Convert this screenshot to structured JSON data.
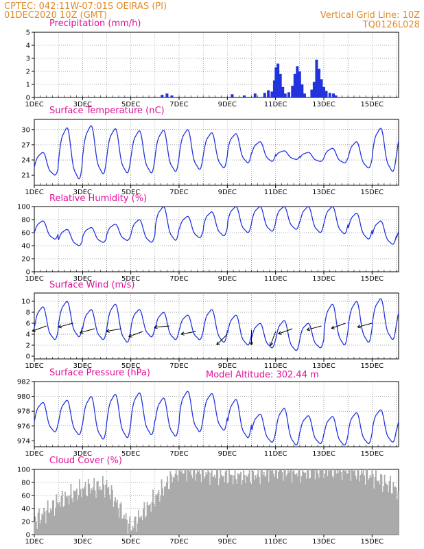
{
  "header": {
    "line1": "CPTEC:   042:11W-07:01S   OEIRAS (PI)",
    "line2": "01DEC2020 10Z (GMT)",
    "right1": "Vertical Grid Line: 10Z",
    "right2": "TQ0126L028"
  },
  "model_altitude": "Model Altitude: 302.44 m",
  "colors": {
    "line": "#2233dd",
    "bar": "#2233dd",
    "cloud": "#aaaaaa",
    "title": "#e0109a",
    "header": "#e08a28",
    "arrow": "#000000"
  },
  "chart_data": [
    {
      "type": "bar",
      "title": "Precipitation (mm/h)",
      "ylim": [
        0,
        5
      ],
      "yticks": [
        "0",
        "1",
        "2",
        "3",
        "4",
        "5"
      ],
      "xticks": [
        "1DEC",
        "3DEC",
        "5DEC",
        "7DEC",
        "9DEC",
        "11DEC",
        "13DEC",
        "15DEC"
      ],
      "bars": [
        {
          "day": 6.3,
          "v": 0.2
        },
        {
          "day": 6.5,
          "v": 0.3
        },
        {
          "day": 6.7,
          "v": 0.15
        },
        {
          "day": 9.2,
          "v": 0.25
        },
        {
          "day": 9.7,
          "v": 0.15
        },
        {
          "day": 10.15,
          "v": 0.3
        },
        {
          "day": 10.55,
          "v": 0.35
        },
        {
          "day": 10.7,
          "v": 0.55
        },
        {
          "day": 10.85,
          "v": 0.45
        },
        {
          "day": 10.95,
          "v": 1.3
        },
        {
          "day": 11.02,
          "v": 2.3
        },
        {
          "day": 11.1,
          "v": 2.6
        },
        {
          "day": 11.2,
          "v": 1.8
        },
        {
          "day": 11.3,
          "v": 0.8
        },
        {
          "day": 11.4,
          "v": 0.3
        },
        {
          "day": 11.55,
          "v": 0.4
        },
        {
          "day": 11.7,
          "v": 0.9
        },
        {
          "day": 11.8,
          "v": 1.8
        },
        {
          "day": 11.9,
          "v": 2.4
        },
        {
          "day": 12.0,
          "v": 2.0
        },
        {
          "day": 12.1,
          "v": 1.0
        },
        {
          "day": 12.2,
          "v": 0.3
        },
        {
          "day": 12.5,
          "v": 0.6
        },
        {
          "day": 12.6,
          "v": 1.2
        },
        {
          "day": 12.7,
          "v": 2.9
        },
        {
          "day": 12.8,
          "v": 2.2
        },
        {
          "day": 12.9,
          "v": 1.4
        },
        {
          "day": 13.0,
          "v": 0.8
        },
        {
          "day": 13.1,
          "v": 0.5
        },
        {
          "day": 13.25,
          "v": 0.35
        },
        {
          "day": 13.4,
          "v": 0.3
        },
        {
          "day": 13.5,
          "v": 0.15
        }
      ]
    },
    {
      "type": "line",
      "title": "Surface Temperature (nC)",
      "ylim": [
        19,
        32
      ],
      "yticks": [
        "21",
        "24",
        "27",
        "30"
      ],
      "ytick_values": [
        21,
        24,
        27,
        30
      ],
      "xticks": [
        "1DEC",
        "3DEC",
        "5DEC",
        "7DEC",
        "9DEC",
        "11DEC",
        "13DEC",
        "15DEC"
      ],
      "daily_max": [
        25.5,
        30.4,
        30.8,
        30.2,
        29.8,
        29.9,
        30.0,
        29.4,
        29.2,
        27.6,
        25.8,
        25.5,
        26.3,
        27.6,
        30.3,
        30.5
      ],
      "daily_min": [
        21.0,
        20.2,
        21.2,
        21.4,
        21.4,
        21.7,
        22.1,
        22.4,
        23.4,
        23.7,
        24.1,
        23.7,
        23.4,
        22.4,
        21.7,
        21.2
      ]
    },
    {
      "type": "line",
      "title": "Relative Humidity (%)",
      "ylim": [
        0,
        100
      ],
      "yticks": [
        "0",
        "20",
        "40",
        "60",
        "80",
        "100"
      ],
      "ytick_values": [
        0,
        20,
        40,
        60,
        80,
        100
      ],
      "xticks": [
        "1DEC",
        "3DEC",
        "5DEC",
        "7DEC",
        "9DEC",
        "11DEC",
        "13DEC",
        "15DEC"
      ],
      "daily_max": [
        78,
        65,
        68,
        73,
        80,
        100,
        85,
        92,
        100,
        100,
        100,
        100,
        100,
        90,
        78,
        70
      ],
      "daily_min": [
        50,
        40,
        45,
        48,
        45,
        48,
        52,
        55,
        60,
        62,
        65,
        60,
        58,
        50,
        42,
        40
      ]
    },
    {
      "type": "line",
      "title": "Surface Wind (m/s)",
      "ylim": [
        -0.5,
        11.5
      ],
      "yticks": [
        "0",
        "2",
        "4",
        "6",
        "8",
        "10"
      ],
      "ytick_values": [
        0,
        2,
        4,
        6,
        8,
        10
      ],
      "xticks": [
        "1DEC",
        "3DEC",
        "5DEC",
        "7DEC",
        "9DEC",
        "11DEC",
        "13DEC",
        "15DEC"
      ],
      "daily_max": [
        9.0,
        10.0,
        8.5,
        9.5,
        8.5,
        8.0,
        7.5,
        8.5,
        7.5,
        6.0,
        6.5,
        6.0,
        9.5,
        10.0,
        10.5,
        10.0
      ],
      "daily_min": [
        3.0,
        3.5,
        3.0,
        2.5,
        3.5,
        3.0,
        3.0,
        2.5,
        2.0,
        1.5,
        1.0,
        1.5,
        2.0,
        2.5,
        3.0,
        3.0
      ],
      "arrows": [
        {
          "day": 1.5,
          "v": 5.5,
          "dir": 250
        },
        {
          "day": 2.6,
          "v": 6.0,
          "dir": 255
        },
        {
          "day": 3.5,
          "v": 5.0,
          "dir": 255
        },
        {
          "day": 4.6,
          "v": 5.0,
          "dir": 260
        },
        {
          "day": 5.5,
          "v": 4.5,
          "dir": 250
        },
        {
          "day": 6.6,
          "v": 5.5,
          "dir": 265
        },
        {
          "day": 7.7,
          "v": 4.5,
          "dir": 260
        },
        {
          "day": 9.0,
          "v": 4.0,
          "dir": 225
        },
        {
          "day": 10.0,
          "v": 4.8,
          "dir": 180
        },
        {
          "day": 11.0,
          "v": 4.5,
          "dir": 200
        },
        {
          "day": 11.7,
          "v": 5.0,
          "dir": 250
        },
        {
          "day": 12.9,
          "v": 5.5,
          "dir": 255
        },
        {
          "day": 13.9,
          "v": 6.0,
          "dir": 250
        },
        {
          "day": 15.0,
          "v": 6.0,
          "dir": 255
        }
      ]
    },
    {
      "type": "line",
      "title": "Surface Pressure (hPa)",
      "ylim": [
        973.2,
        982
      ],
      "yticks": [
        "974",
        "976",
        "978",
        "980",
        "982"
      ],
      "ytick_values": [
        974,
        976,
        978,
        980,
        982
      ],
      "xticks": [
        "1DEC",
        "3DEC",
        "5DEC",
        "7DEC",
        "9DEC",
        "11DEC",
        "13DEC",
        "15DEC"
      ],
      "daily_max": [
        979.2,
        979.5,
        980.0,
        980.3,
        980.5,
        979.8,
        980.7,
        980.4,
        979.6,
        977.6,
        978.4,
        977.4,
        977.3,
        977.8,
        978.2,
        977.8
      ],
      "daily_min": [
        975.2,
        974.8,
        974.2,
        974.4,
        974.8,
        974.6,
        975.2,
        975.4,
        974.4,
        973.8,
        973.4,
        973.6,
        973.4,
        973.6,
        973.8,
        973.6
      ]
    },
    {
      "type": "area",
      "title": "Cloud Cover (%)",
      "ylim": [
        0,
        100
      ],
      "yticks": [
        "0",
        "20",
        "40",
        "60",
        "80",
        "100"
      ],
      "ytick_values": [
        0,
        20,
        40,
        60,
        80,
        100
      ],
      "xticks": [
        "1DEC",
        "3DEC",
        "5DEC",
        "7DEC",
        "9DEC",
        "11DEC",
        "13DEC",
        "15DEC"
      ],
      "daily_values": [
        20,
        50,
        70,
        75,
        10,
        55,
        100,
        95,
        90,
        90,
        100,
        95,
        100,
        100,
        90,
        70,
        20
      ]
    }
  ]
}
